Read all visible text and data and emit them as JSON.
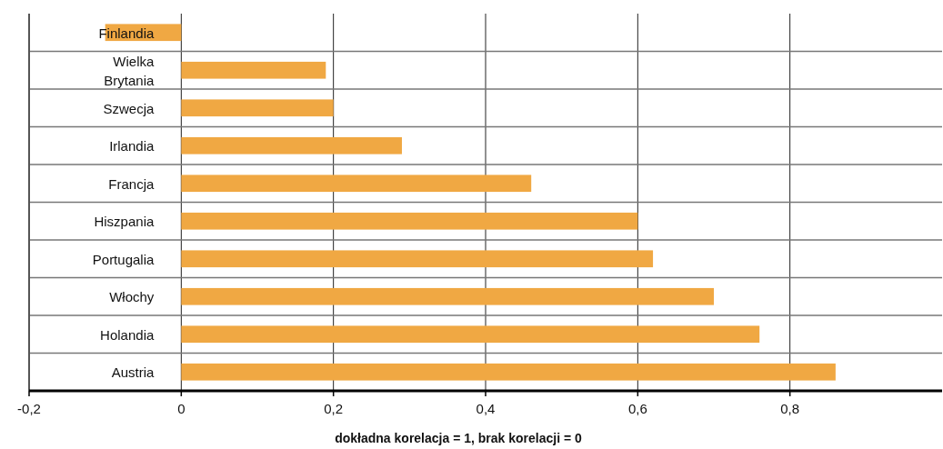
{
  "chart_data": {
    "type": "bar",
    "orientation": "horizontal",
    "categories": [
      "Finlandia",
      "Wielka Brytania",
      "Szwecja",
      "Irlandia",
      "Francja",
      "Hiszpania",
      "Portugalia",
      "Włochy",
      "Holandia",
      "Austria"
    ],
    "values": [
      -0.1,
      0.19,
      0.2,
      0.29,
      0.46,
      0.6,
      0.62,
      0.7,
      0.76,
      0.86
    ],
    "color": "#f0a843",
    "xlim": [
      -0.2,
      1.0
    ],
    "xticks": [
      {
        "value": -0.2,
        "label": "-0,2"
      },
      0,
      {
        "value": 0.2,
        "label": "0,2"
      },
      {
        "value": 0.4,
        "label": "0,4"
      },
      {
        "value": 0.6,
        "label": "0,6"
      },
      {
        "value": 0.8,
        "label": "0,8"
      }
    ],
    "xlabel": "dokładna korelacja = 1, brak korelacji = 0",
    "grid": true
  }
}
